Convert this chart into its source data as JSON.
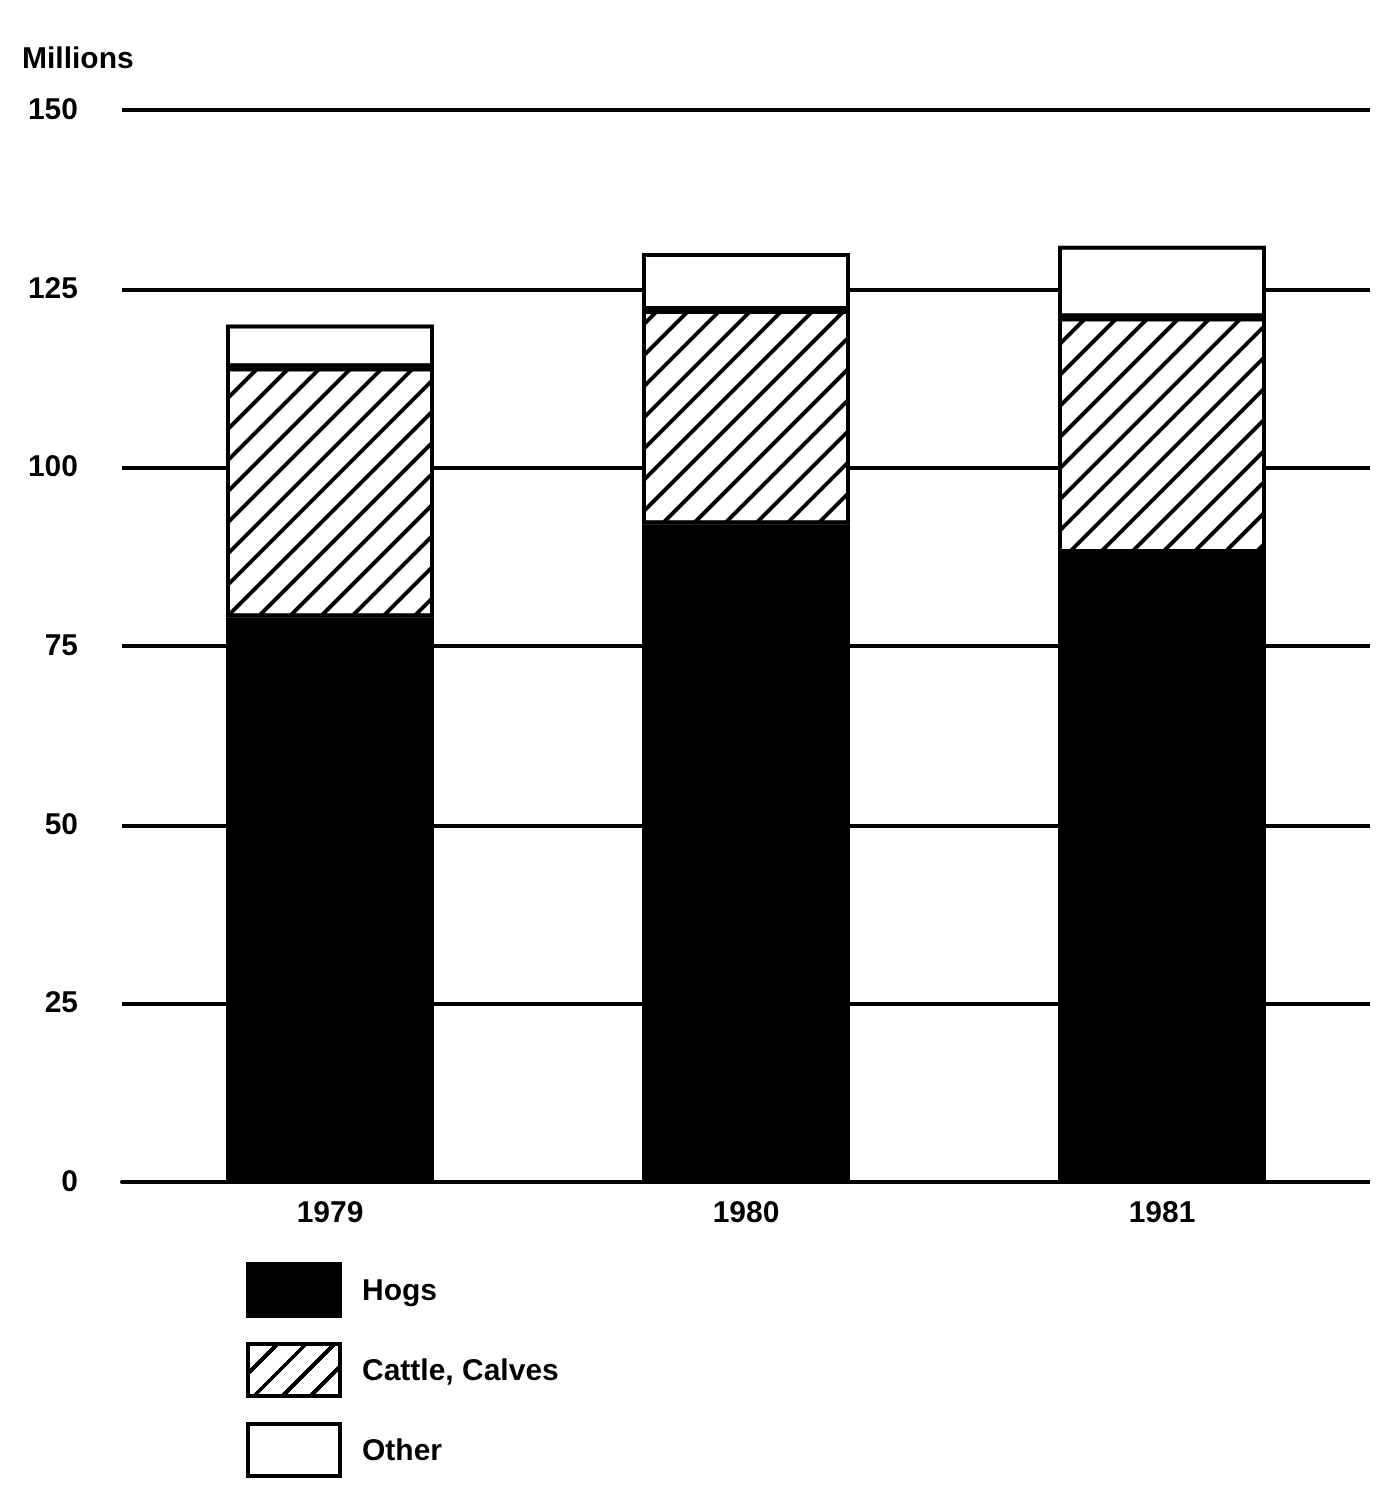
{
  "chart_data": {
    "type": "bar",
    "ylabel": "Millions",
    "categories": [
      "1979",
      "1980",
      "1981"
    ],
    "stacked": true,
    "series": [
      {
        "name": "Hogs",
        "color": "#000000",
        "values": [
          79,
          92,
          88
        ]
      },
      {
        "name": "Cattle, Calves",
        "color": "#ffffff",
        "values": [
          35,
          30,
          33
        ]
      },
      {
        "name": "Other",
        "color": "#ffffff",
        "values": [
          6,
          8,
          10
        ]
      }
    ],
    "ylim": [
      0,
      150
    ],
    "yticks": [
      0,
      25,
      50,
      75,
      100,
      125,
      150
    ],
    "grid": "y",
    "legend": "bottom"
  }
}
